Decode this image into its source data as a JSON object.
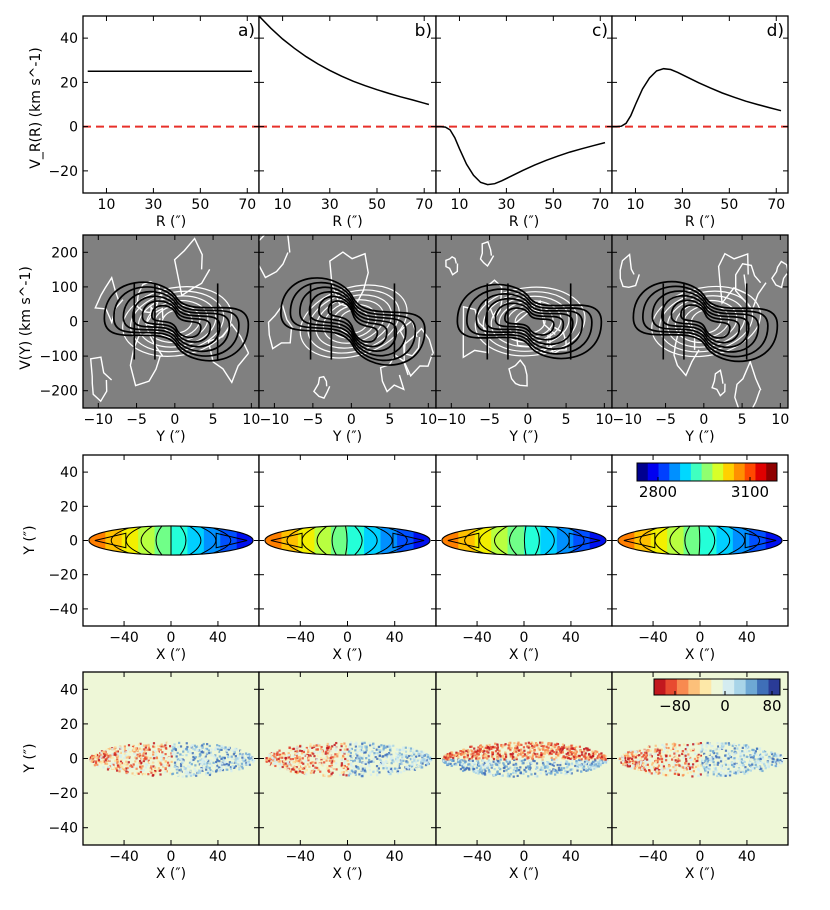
{
  "chart_data": {
    "type": "multi-panel",
    "rows": [
      {
        "type": "line",
        "ylabel": "V_R(R) (km s^-1)",
        "xlabel": "R (″)",
        "xlim": [
          0,
          75
        ],
        "ylim": [
          -30,
          50
        ],
        "xticks": [
          "10",
          "30",
          "50",
          "70"
        ],
        "yticks": [
          "-20",
          "0",
          "20",
          "40"
        ],
        "reference_line": {
          "y": 0,
          "color": "#e8302a",
          "style": "dashed"
        },
        "panels": [
          {
            "label": "a)",
            "series": [
              {
                "name": "V_R",
                "x": [
                  2,
                  72
                ],
                "y": [
                  25,
                  25
                ]
              }
            ]
          },
          {
            "label": "b)",
            "series": [
              {
                "name": "V_R",
                "x": [
                  0,
                  5,
                  10,
                  15,
                  20,
                  25,
                  30,
                  35,
                  40,
                  45,
                  50,
                  55,
                  60,
                  65,
                  70,
                  72
                ],
                "y": [
                  50,
                  44.5,
                  39.6,
                  35.4,
                  31.6,
                  28.3,
                  25.4,
                  22.8,
                  20.5,
                  18.5,
                  16.7,
                  15,
                  13.5,
                  12.1,
                  10.6,
                  10
                ]
              }
            ]
          },
          {
            "label": "c)",
            "series": [
              {
                "name": "V_R",
                "x": [
                  0,
                  2,
                  4,
                  6,
                  8,
                  10,
                  13,
                  16,
                  19,
                  22,
                  25,
                  28,
                  32,
                  37,
                  42,
                  47,
                  52,
                  57,
                  62,
                  67,
                  72
                ],
                "y": [
                  0,
                  0,
                  -0.2,
                  -1.5,
                  -5,
                  -10,
                  -17,
                  -22,
                  -25.2,
                  -26.2,
                  -25.8,
                  -24.5,
                  -22.4,
                  -19.8,
                  -17.4,
                  -15.2,
                  -13.3,
                  -11.5,
                  -10,
                  -8.6,
                  -7.2
                ]
              }
            ]
          },
          {
            "label": "d)",
            "series": [
              {
                "name": "V_R",
                "x": [
                  0,
                  2,
                  4,
                  6,
                  8,
                  10,
                  13,
                  16,
                  19,
                  22,
                  25,
                  28,
                  32,
                  37,
                  42,
                  47,
                  52,
                  57,
                  62,
                  67,
                  72
                ],
                "y": [
                  0,
                  0,
                  0.2,
                  1.5,
                  5,
                  10,
                  17,
                  22,
                  25.2,
                  26.2,
                  25.8,
                  24.5,
                  22.4,
                  19.8,
                  17.4,
                  15.2,
                  13.3,
                  11.5,
                  10,
                  8.6,
                  7.2
                ]
              }
            ]
          }
        ]
      },
      {
        "type": "contour",
        "ylabel": "V(Y) (km s^-1)",
        "xlabel": "Y (″)",
        "xlim": [
          -12,
          11
        ],
        "ylim": [
          -250,
          250
        ],
        "xticks": [
          "-10",
          "-5",
          "0",
          "5",
          "10"
        ],
        "yticks": [
          "-200",
          "-100",
          "0",
          "100",
          "200"
        ],
        "background": "#808080",
        "panels": [
          {
            "model_tilt": 20,
            "model_offset": 0
          },
          {
            "model_tilt": 35,
            "model_offset": 0
          },
          {
            "model_tilt": 12,
            "model_offset": 0
          },
          {
            "model_tilt": 22,
            "model_offset": 0
          }
        ]
      },
      {
        "type": "velocity-field",
        "ylabel": "Y (″)",
        "xlabel": "X (″)",
        "xlim": [
          -75,
          75
        ],
        "ylim": [
          -50,
          50
        ],
        "xticks": [
          "-40",
          "0",
          "40"
        ],
        "yticks": [
          "-40",
          "-20",
          "0",
          "20",
          "40"
        ],
        "colorbar": {
          "ticks": [
            "2800",
            "3100"
          ],
          "colors": [
            "#00008f",
            "#0000f0",
            "#0040ff",
            "#0090ff",
            "#00d8ff",
            "#40ffc0",
            "#90ff70",
            "#d8ff28",
            "#ffd000",
            "#ff9000",
            "#ff4800",
            "#e00000",
            "#8f0000"
          ]
        },
        "ellipse": {
          "center": [
            0,
            0
          ],
          "semi_major": 70,
          "semi_minor": 8.5
        },
        "band_colors": [
          "#ff7f00",
          "#ffc000",
          "#f2ef00",
          "#b8ff40",
          "#70ff88",
          "#24ffd8",
          "#00d0ff",
          "#0090ff",
          "#0050ff",
          "#0010f0"
        ],
        "panels": [
          {
            "center_shift": 0,
            "warp": 0
          },
          {
            "center_shift": -3,
            "warp": 2
          },
          {
            "center_shift": 2,
            "warp": -2
          },
          {
            "center_shift": 0,
            "warp": 1
          }
        ]
      },
      {
        "type": "residual-map",
        "ylabel": "Y (″)",
        "xlabel": "X (″)",
        "xlim": [
          -75,
          75
        ],
        "ylim": [
          -50,
          50
        ],
        "xticks": [
          "-40",
          "0",
          "40"
        ],
        "yticks": [
          "-40",
          "-20",
          "0",
          "20",
          "40"
        ],
        "background": "#eef7d7",
        "colorbar": {
          "ticks": [
            "-80",
            "0",
            "80"
          ],
          "colors": [
            "#c2181e",
            "#e84a30",
            "#f88a50",
            "#fcc07a",
            "#fde8a8",
            "#eef7d7",
            "#d4ecf0",
            "#a8d4e8",
            "#6ea8d4",
            "#3f6fb8",
            "#2a3b96"
          ]
        },
        "panels": [
          {
            "top_residual": "blue",
            "strength": 1
          },
          {
            "top_residual": "blue",
            "strength": 1
          },
          {
            "top_residual": "red",
            "strength": 2
          },
          {
            "top_residual": "blue",
            "strength": 1
          }
        ]
      }
    ]
  }
}
